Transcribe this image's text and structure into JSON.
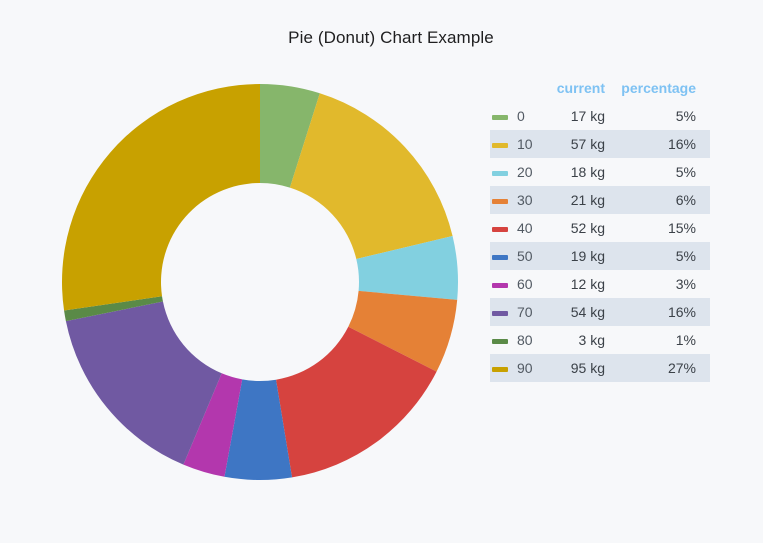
{
  "title": "Pie (Donut) Chart Example",
  "legend": {
    "header_current": "current",
    "header_percentage": "percentage"
  },
  "chart_data": {
    "type": "pie",
    "style": "donut",
    "title": "Pie (Donut) Chart Example",
    "legend_placement": "right",
    "start_angle_deg": 0,
    "direction": "clockwise",
    "slices": [
      {
        "label": "0",
        "current": "17 kg",
        "value": 17,
        "percentage": "5%",
        "color": "#86b66b"
      },
      {
        "label": "10",
        "current": "57 kg",
        "value": 57,
        "percentage": "16%",
        "color": "#e1b92c"
      },
      {
        "label": "20",
        "current": "18 kg",
        "value": 18,
        "percentage": "5%",
        "color": "#82d0e0"
      },
      {
        "label": "30",
        "current": "21 kg",
        "value": 21,
        "percentage": "6%",
        "color": "#e58136"
      },
      {
        "label": "40",
        "current": "52 kg",
        "value": 52,
        "percentage": "15%",
        "color": "#d6433f"
      },
      {
        "label": "50",
        "current": "19 kg",
        "value": 19,
        "percentage": "5%",
        "color": "#3e76c4"
      },
      {
        "label": "60",
        "current": "12 kg",
        "value": 12,
        "percentage": "3%",
        "color": "#b337ad"
      },
      {
        "label": "70",
        "current": "54 kg",
        "value": 54,
        "percentage": "16%",
        "color": "#7059a2"
      },
      {
        "label": "80",
        "current": "3 kg",
        "value": 3,
        "percentage": "1%",
        "color": "#5a8a47"
      },
      {
        "label": "90",
        "current": "95 kg",
        "value": 95,
        "percentage": "27%",
        "color": "#c8a100"
      }
    ]
  }
}
